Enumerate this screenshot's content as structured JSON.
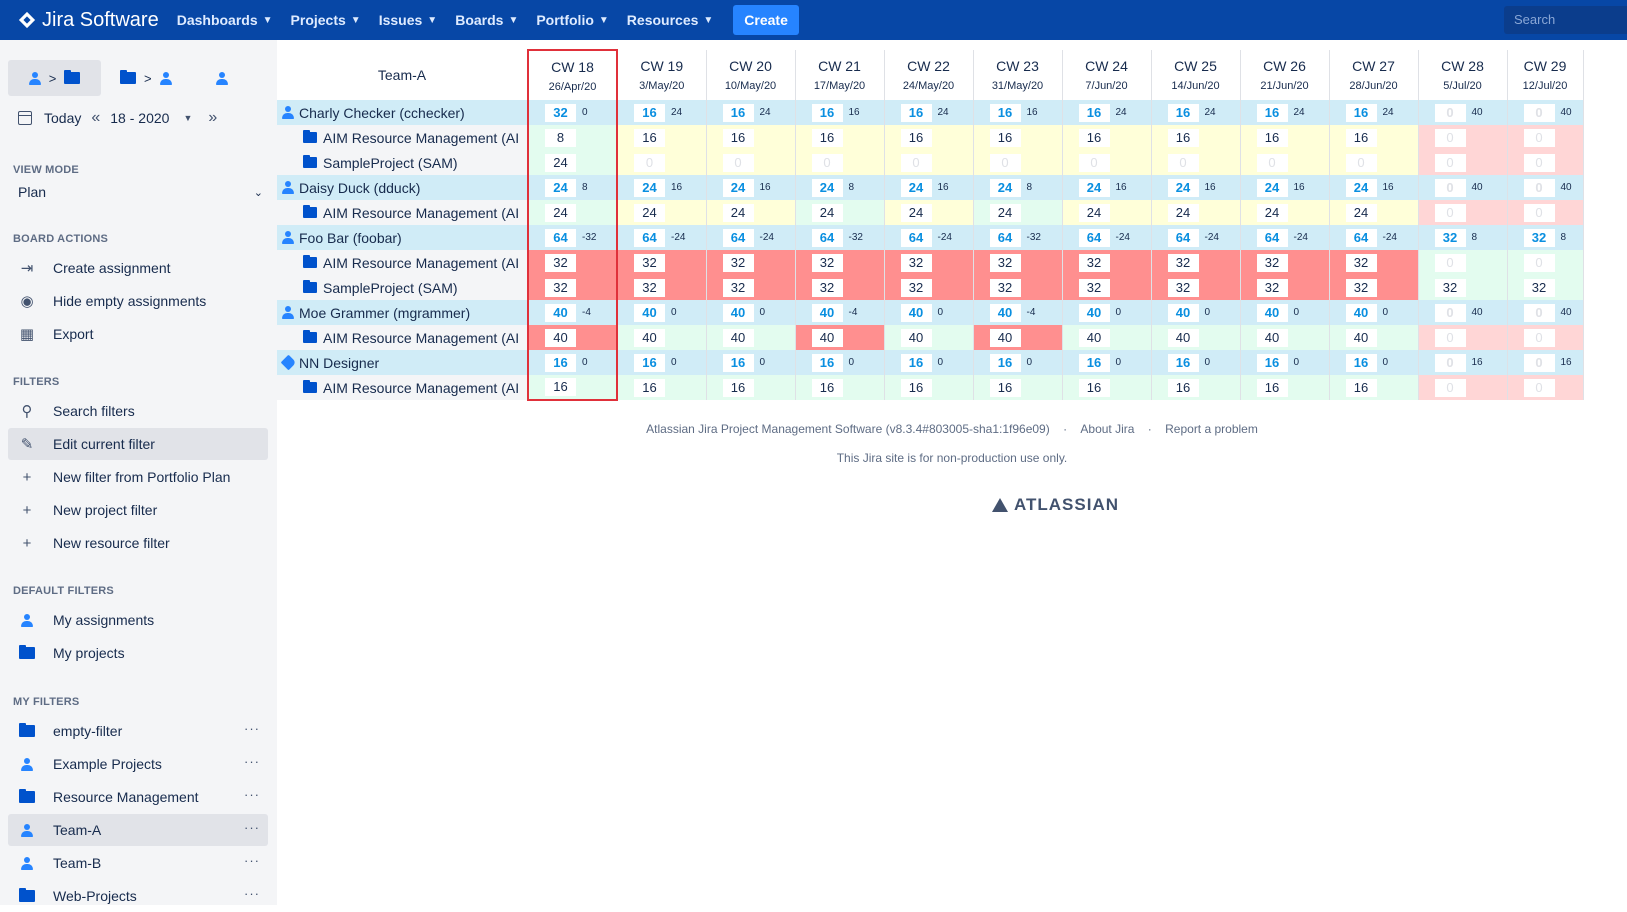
{
  "nav": {
    "logo": "Jira Software",
    "items": [
      "Dashboards",
      "Projects",
      "Issues",
      "Boards",
      "Portfolio",
      "Resources"
    ],
    "create": "Create",
    "search_placeholder": "Search"
  },
  "sidebar": {
    "date": {
      "today": "Today",
      "week": "18 - 2020"
    },
    "view_mode_title": "VIEW MODE",
    "view_mode": "Plan",
    "board_actions_title": "BOARD ACTIONS",
    "board_actions": [
      "Create assignment",
      "Hide empty assignments",
      "Export"
    ],
    "filters_title": "FILTERS",
    "filters": [
      "Search filters",
      "Edit current filter",
      "New filter from Portfolio Plan",
      "New project filter",
      "New resource filter"
    ],
    "default_filters_title": "DEFAULT FILTERS",
    "default_filters": [
      "My assignments",
      "My projects"
    ],
    "my_filters_title": "MY FILTERS",
    "my_filters": [
      "empty-filter",
      "Example Projects",
      "Resource Management",
      "Team-A",
      "Team-B",
      "Web-Projects"
    ]
  },
  "grid": {
    "team": "Team-A",
    "weeks": [
      {
        "cw": "CW 18",
        "date": "26/Apr/20"
      },
      {
        "cw": "CW 19",
        "date": "3/May/20"
      },
      {
        "cw": "CW 20",
        "date": "10/May/20"
      },
      {
        "cw": "CW 21",
        "date": "17/May/20"
      },
      {
        "cw": "CW 22",
        "date": "24/May/20"
      },
      {
        "cw": "CW 23",
        "date": "31/May/20"
      },
      {
        "cw": "CW 24",
        "date": "7/Jun/20"
      },
      {
        "cw": "CW 25",
        "date": "14/Jun/20"
      },
      {
        "cw": "CW 26",
        "date": "21/Jun/20"
      },
      {
        "cw": "CW 27",
        "date": "28/Jun/20"
      },
      {
        "cw": "CW 28",
        "date": "5/Jul/20"
      },
      {
        "cw": "CW 29",
        "date": "12/Jul/20"
      }
    ],
    "rows": [
      {
        "type": "person",
        "name": "Charly Checker (cchecker)",
        "icon": "user",
        "cells": [
          [
            "32",
            "0"
          ],
          [
            "16",
            "24"
          ],
          [
            "16",
            "24"
          ],
          [
            "16",
            "16"
          ],
          [
            "16",
            "24"
          ],
          [
            "16",
            "16"
          ],
          [
            "16",
            "24"
          ],
          [
            "16",
            "24"
          ],
          [
            "16",
            "24"
          ],
          [
            "16",
            "24"
          ],
          [
            "0",
            "40"
          ],
          [
            "0",
            "40"
          ]
        ]
      },
      {
        "type": "project",
        "name": "AIM Resource Management (AI",
        "cells": [
          [
            "8",
            "",
            "g"
          ],
          [
            "16",
            "",
            "y"
          ],
          [
            "16",
            "",
            "y"
          ],
          [
            "16",
            "",
            "y"
          ],
          [
            "16",
            "",
            "y"
          ],
          [
            "16",
            "",
            "y"
          ],
          [
            "16",
            "",
            "y"
          ],
          [
            "16",
            "",
            "y"
          ],
          [
            "16",
            "",
            "y"
          ],
          [
            "16",
            "",
            "y"
          ],
          [
            "0",
            "",
            "p"
          ],
          [
            "0",
            "",
            "p"
          ]
        ]
      },
      {
        "type": "project",
        "name": "SampleProject (SAM)",
        "cells": [
          [
            "24",
            "",
            "g"
          ],
          [
            "0",
            "",
            "y"
          ],
          [
            "0",
            "",
            "y"
          ],
          [
            "0",
            "",
            "y"
          ],
          [
            "0",
            "",
            "y"
          ],
          [
            "0",
            "",
            "y"
          ],
          [
            "0",
            "",
            "y"
          ],
          [
            "0",
            "",
            "y"
          ],
          [
            "0",
            "",
            "y"
          ],
          [
            "0",
            "",
            "y"
          ],
          [
            "0",
            "",
            "p"
          ],
          [
            "0",
            "",
            "p"
          ]
        ]
      },
      {
        "type": "person",
        "name": "Daisy Duck (dduck)",
        "icon": "user",
        "cells": [
          [
            "24",
            "8"
          ],
          [
            "24",
            "16"
          ],
          [
            "24",
            "16"
          ],
          [
            "24",
            "8"
          ],
          [
            "24",
            "16"
          ],
          [
            "24",
            "8"
          ],
          [
            "24",
            "16"
          ],
          [
            "24",
            "16"
          ],
          [
            "24",
            "16"
          ],
          [
            "24",
            "16"
          ],
          [
            "0",
            "40"
          ],
          [
            "0",
            "40"
          ]
        ]
      },
      {
        "type": "project",
        "name": "AIM Resource Management (AI",
        "cells": [
          [
            "24",
            "",
            "g"
          ],
          [
            "24",
            "",
            "y"
          ],
          [
            "24",
            "",
            "y"
          ],
          [
            "24",
            "",
            "g"
          ],
          [
            "24",
            "",
            "y"
          ],
          [
            "24",
            "",
            "g"
          ],
          [
            "24",
            "",
            "y"
          ],
          [
            "24",
            "",
            "y"
          ],
          [
            "24",
            "",
            "y"
          ],
          [
            "24",
            "",
            "y"
          ],
          [
            "0",
            "",
            "p"
          ],
          [
            "0",
            "",
            "p"
          ]
        ]
      },
      {
        "type": "person",
        "name": "Foo Bar (foobar)",
        "icon": "user",
        "cells": [
          [
            "64",
            "-32"
          ],
          [
            "64",
            "-24"
          ],
          [
            "64",
            "-24"
          ],
          [
            "64",
            "-32"
          ],
          [
            "64",
            "-24"
          ],
          [
            "64",
            "-32"
          ],
          [
            "64",
            "-24"
          ],
          [
            "64",
            "-24"
          ],
          [
            "64",
            "-24"
          ],
          [
            "64",
            "-24"
          ],
          [
            "32",
            "8"
          ],
          [
            "32",
            "8"
          ]
        ]
      },
      {
        "type": "project",
        "name": "AIM Resource Management (AI",
        "cells": [
          [
            "32",
            "",
            "r"
          ],
          [
            "32",
            "",
            "r"
          ],
          [
            "32",
            "",
            "r"
          ],
          [
            "32",
            "",
            "r"
          ],
          [
            "32",
            "",
            "r"
          ],
          [
            "32",
            "",
            "r"
          ],
          [
            "32",
            "",
            "r"
          ],
          [
            "32",
            "",
            "r"
          ],
          [
            "32",
            "",
            "r"
          ],
          [
            "32",
            "",
            "r"
          ],
          [
            "0",
            "",
            "g"
          ],
          [
            "0",
            "",
            "g"
          ]
        ]
      },
      {
        "type": "project",
        "name": "SampleProject (SAM)",
        "cells": [
          [
            "32",
            "",
            "r"
          ],
          [
            "32",
            "",
            "r"
          ],
          [
            "32",
            "",
            "r"
          ],
          [
            "32",
            "",
            "r"
          ],
          [
            "32",
            "",
            "r"
          ],
          [
            "32",
            "",
            "r"
          ],
          [
            "32",
            "",
            "r"
          ],
          [
            "32",
            "",
            "r"
          ],
          [
            "32",
            "",
            "r"
          ],
          [
            "32",
            "",
            "r"
          ],
          [
            "32",
            "",
            "g"
          ],
          [
            "32",
            "",
            "g"
          ]
        ]
      },
      {
        "type": "person",
        "name": "Moe Grammer (mgrammer)",
        "icon": "user",
        "cells": [
          [
            "40",
            "-4"
          ],
          [
            "40",
            "0"
          ],
          [
            "40",
            "0"
          ],
          [
            "40",
            "-4"
          ],
          [
            "40",
            "0"
          ],
          [
            "40",
            "-4"
          ],
          [
            "40",
            "0"
          ],
          [
            "40",
            "0"
          ],
          [
            "40",
            "0"
          ],
          [
            "40",
            "0"
          ],
          [
            "0",
            "40"
          ],
          [
            "0",
            "40"
          ]
        ]
      },
      {
        "type": "project",
        "name": "AIM Resource Management (AI",
        "cells": [
          [
            "40",
            "",
            "r"
          ],
          [
            "40",
            "",
            "g"
          ],
          [
            "40",
            "",
            "g"
          ],
          [
            "40",
            "",
            "r"
          ],
          [
            "40",
            "",
            "g"
          ],
          [
            "40",
            "",
            "r"
          ],
          [
            "40",
            "",
            "g"
          ],
          [
            "40",
            "",
            "g"
          ],
          [
            "40",
            "",
            "g"
          ],
          [
            "40",
            "",
            "g"
          ],
          [
            "0",
            "",
            "p"
          ],
          [
            "0",
            "",
            "p"
          ]
        ]
      },
      {
        "type": "person",
        "name": "NN Designer",
        "icon": "tag",
        "cells": [
          [
            "16",
            "0"
          ],
          [
            "16",
            "0"
          ],
          [
            "16",
            "0"
          ],
          [
            "16",
            "0"
          ],
          [
            "16",
            "0"
          ],
          [
            "16",
            "0"
          ],
          [
            "16",
            "0"
          ],
          [
            "16",
            "0"
          ],
          [
            "16",
            "0"
          ],
          [
            "16",
            "0"
          ],
          [
            "0",
            "16"
          ],
          [
            "0",
            "16"
          ]
        ]
      },
      {
        "type": "project",
        "name": "AIM Resource Management (AI",
        "cells": [
          [
            "16",
            "",
            "g"
          ],
          [
            "16",
            "",
            "g"
          ],
          [
            "16",
            "",
            "g"
          ],
          [
            "16",
            "",
            "g"
          ],
          [
            "16",
            "",
            "g"
          ],
          [
            "16",
            "",
            "g"
          ],
          [
            "16",
            "",
            "g"
          ],
          [
            "16",
            "",
            "g"
          ],
          [
            "16",
            "",
            "g"
          ],
          [
            "16",
            "",
            "g"
          ],
          [
            "0",
            "",
            "p"
          ],
          [
            "0",
            "",
            "p"
          ]
        ]
      }
    ]
  },
  "footer": {
    "software": "Atlassian Jira Project Management Software (v8.3.4#803005-sha1:1f96e09)",
    "about": "About Jira",
    "report": "Report a problem",
    "sep": "·",
    "notice": "This Jira site is for non-production use only.",
    "logo": "ATLASSIAN"
  }
}
